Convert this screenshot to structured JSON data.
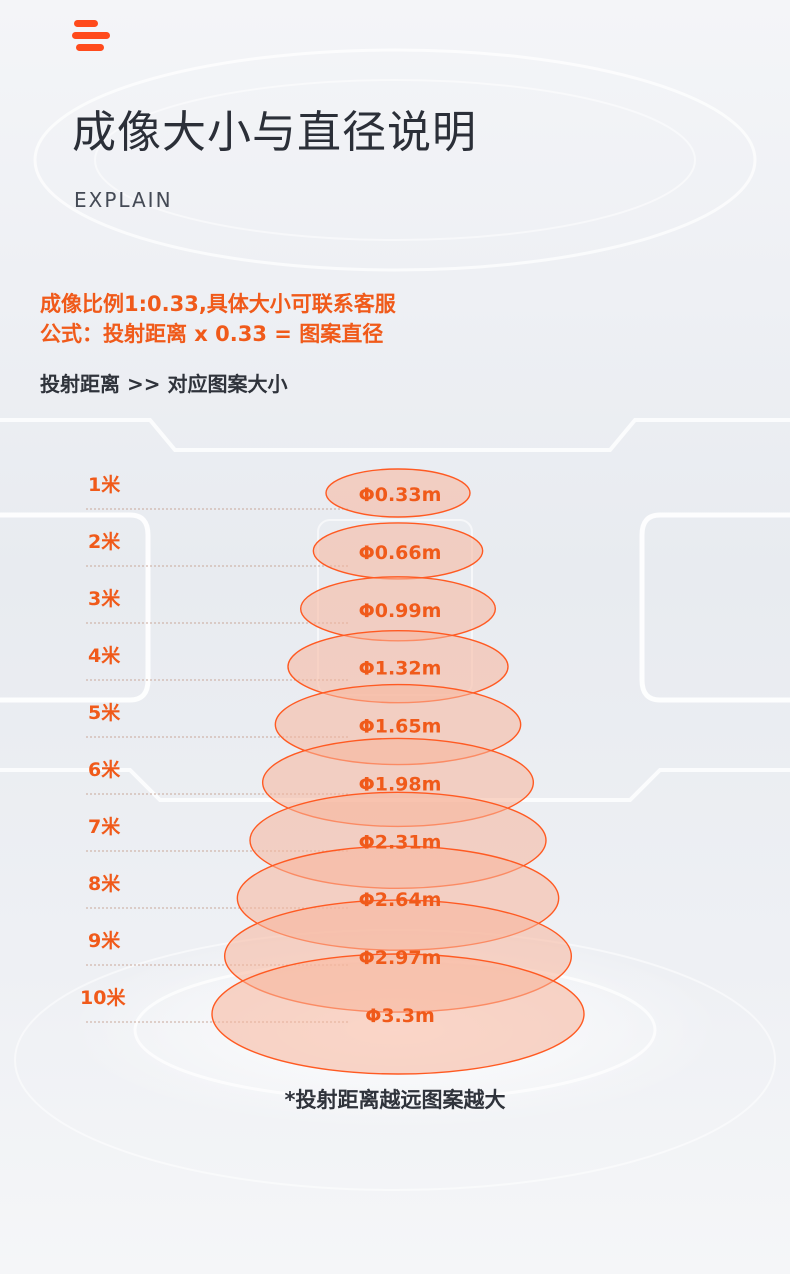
{
  "title": "成像大小与直径说明",
  "subtitle": "EXPLAIN",
  "notes": {
    "ratio": "成像比例1:0.33,具体大小可联系客服",
    "formula": "公式：投射距离 x 0.33 = 图案直径"
  },
  "section_heading": "投射距离 >> 对应图案大小",
  "rows": [
    {
      "distance": "1米",
      "diameter": "Φ0.33m"
    },
    {
      "distance": "2米",
      "diameter": "Φ0.66m"
    },
    {
      "distance": "3米",
      "diameter": "Φ0.99m"
    },
    {
      "distance": "4米",
      "diameter": "Φ1.32m"
    },
    {
      "distance": "5米",
      "diameter": "Φ1.65m"
    },
    {
      "distance": "6米",
      "diameter": "Φ1.98m"
    },
    {
      "distance": "7米",
      "diameter": "Φ2.31m"
    },
    {
      "distance": "8米",
      "diameter": "Φ2.64m"
    },
    {
      "distance": "9米",
      "diameter": "Φ2.97m"
    },
    {
      "distance": "10米",
      "diameter": "Φ3.3m"
    }
  ],
  "footer": "*投射距离越远图案越大",
  "colors": {
    "accent": "#f05a1a",
    "ellipse_fill": "#f7b49a",
    "ellipse_stroke": "#ff5a22"
  },
  "icons": {
    "logo": "menu-lines-icon"
  }
}
